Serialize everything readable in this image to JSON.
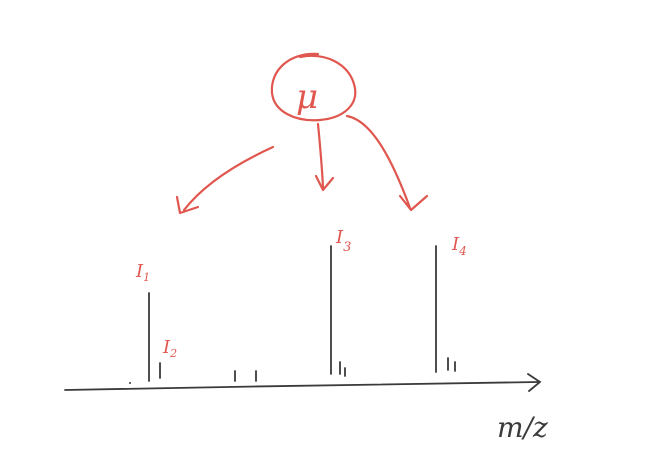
{
  "diagram": {
    "source_label": "μ",
    "axis_label": "m/z",
    "peak_labels": {
      "I1": {
        "letter": "I",
        "sub": "1"
      },
      "I2": {
        "letter": "I",
        "sub": "2"
      },
      "I3": {
        "letter": "I",
        "sub": "3"
      },
      "I4": {
        "letter": "I",
        "sub": "4"
      }
    }
  },
  "colors": {
    "annotation": "#e0574f",
    "ink": "#3a3a3a"
  }
}
